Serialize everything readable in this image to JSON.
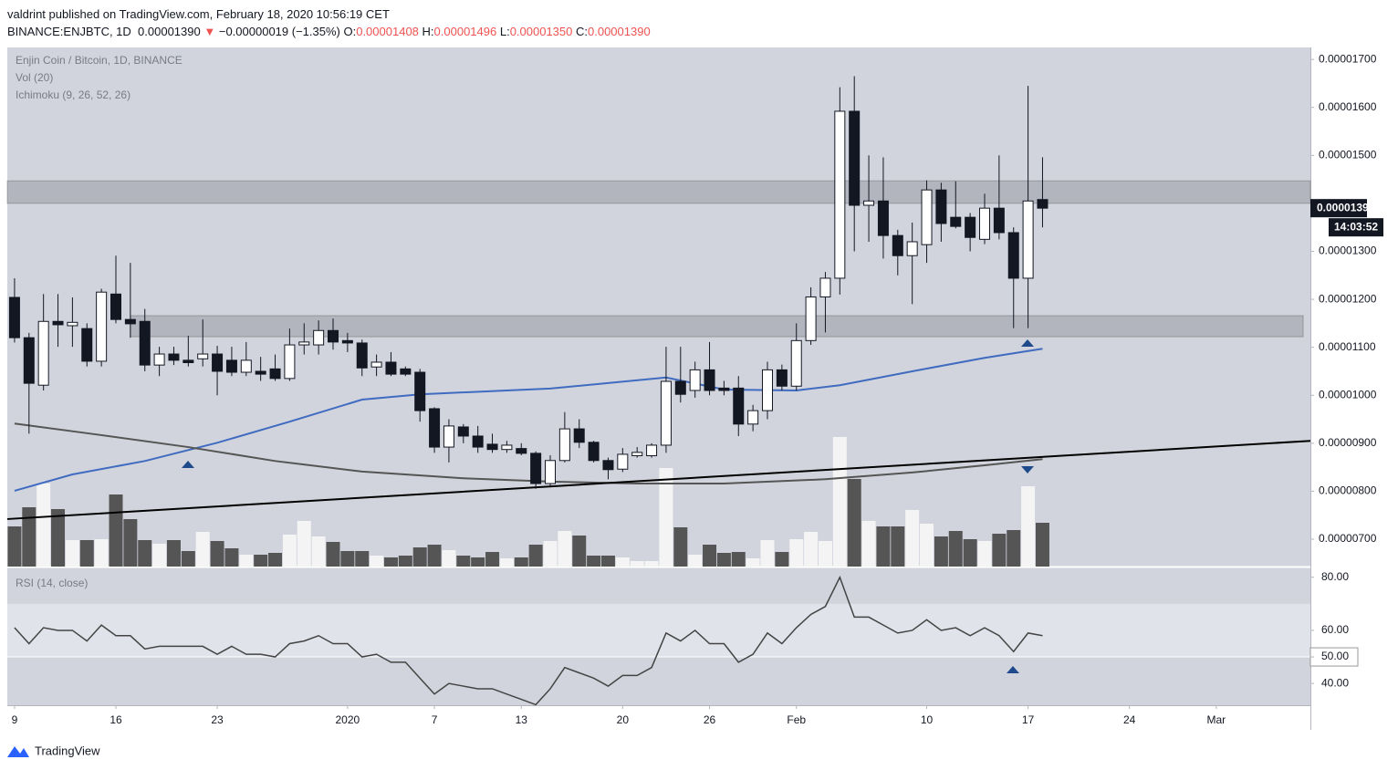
{
  "header": {
    "published": "valdrint published on TradingView.com, February 18, 2020 10:56:19 CET",
    "symbol": "BINANCE:ENJBTC, 1D",
    "last": "0.00001390",
    "arrow": "▼",
    "change": "−0.00000019 (−1.35%)",
    "o_key": "O:",
    "o_val": "0.00001408",
    "h_key": "H:",
    "h_val": "0.00001496",
    "l_key": "L:",
    "l_val": "0.00001350",
    "c_key": "C:",
    "c_val": "0.00001390"
  },
  "chart_data": {
    "type": "candlestick",
    "legend": [
      "Enjin Coin / Bitcoin, 1D, BINANCE",
      "Vol (20)",
      "Ichimoku (9, 26, 52, 26)"
    ],
    "xlim": [
      -0.5,
      89.5
    ],
    "xticks": [
      {
        "value": 0,
        "label": "9"
      },
      {
        "value": 7,
        "label": "16"
      },
      {
        "value": 14,
        "label": "23"
      },
      {
        "value": 23,
        "label": "2020"
      },
      {
        "value": 29,
        "label": "7"
      },
      {
        "value": 35,
        "label": "13"
      },
      {
        "value": 42,
        "label": "20"
      },
      {
        "value": 48,
        "label": "26"
      },
      {
        "value": 54,
        "label": "Feb"
      },
      {
        "value": 63,
        "label": "10"
      },
      {
        "value": 70,
        "label": "17"
      },
      {
        "value": 77,
        "label": "24"
      },
      {
        "value": 83,
        "label": "Mar"
      }
    ],
    "ylim": [
      6.43e-06,
      1.725e-05
    ],
    "yticks": [
      {
        "value": 7e-06,
        "label": "0.00000700"
      },
      {
        "value": 8e-06,
        "label": "0.00000800"
      },
      {
        "value": 9e-06,
        "label": "0.00000900"
      },
      {
        "value": 1e-05,
        "label": "0.00001000"
      },
      {
        "value": 1.1e-05,
        "label": "0.00001100"
      },
      {
        "value": 1.2e-05,
        "label": "0.00001200"
      },
      {
        "value": 1.3e-05,
        "label": "0.00001300"
      },
      {
        "value": 1.5e-05,
        "label": "0.00001500"
      },
      {
        "value": 1.6e-05,
        "label": "0.00001600"
      },
      {
        "value": 1.7e-05,
        "label": "0.00001700"
      }
    ],
    "last_price": {
      "value": 1.39e-05,
      "label": "0.00001390",
      "countdown": "14:03:52"
    },
    "up_color": "#ffffff",
    "down_color": "#131722",
    "open": [
      1.204e-05,
      1.12e-05,
      1.021e-05,
      1.154e-05,
      1.145e-05,
      1.139e-05,
      1.071e-05,
      1.211e-05,
      1.158e-05,
      1.154e-05,
      1.063e-05,
      1.086e-05,
      1.073e-05,
      1.076e-05,
      1.086e-05,
      1.073e-05,
      1.048e-05,
      1.05e-05,
      1.055e-05,
      1.035e-05,
      1.105e-05,
      1.105e-05,
      1.135e-05,
      1.114e-05,
      1.109e-05,
      1.059e-05,
      1.069e-05,
      1.055e-05,
      1.048e-05,
      9.72e-06,
      8.92e-06,
      9.34e-06,
      9.15e-06,
      8.98e-06,
      8.87e-06,
      8.89e-06,
      8.79e-06,
      8.16e-06,
      8.64e-06,
      9.3e-06,
      9.02e-06,
      8.64e-06,
      8.46e-06,
      8.74e-06,
      8.74e-06,
      8.96e-06,
      1.029e-05,
      1.01e-05,
      1.053e-05,
      1.015e-05,
      1.015e-05,
      9.4e-06,
      9.68e-06,
      1.053e-05,
      1.019e-05,
      1.114e-05,
      1.205e-05,
      1.244e-05,
      1.592e-05,
      1.396e-05,
      1.405e-05,
      1.333e-05,
      1.291e-05,
      1.314e-05,
      1.428e-05,
      1.371e-05,
      1.371e-05,
      1.325e-05,
      1.39e-05,
      1.339e-05,
      1.244e-05,
      1.408e-05
    ],
    "high": [
      1.244e-05,
      1.13e-05,
      1.211e-05,
      1.211e-05,
      1.204e-05,
      1.15e-05,
      1.222e-05,
      1.291e-05,
      1.276e-05,
      1.18e-05,
      1.101e-05,
      1.101e-05,
      1.124e-05,
      1.158e-05,
      1.103e-05,
      1.101e-05,
      1.111e-05,
      1.08e-05,
      1.085e-05,
      1.139e-05,
      1.15e-05,
      1.156e-05,
      1.16e-05,
      1.13e-05,
      1.116e-05,
      1.085e-05,
      1.09e-05,
      1.06e-05,
      1.055e-05,
      9.75e-06,
      9.5e-06,
      9.4e-06,
      9.36e-06,
      9.2e-06,
      9.05e-06,
      9e-06,
      8.83e-06,
      8.75e-06,
      9.65e-06,
      9.5e-06,
      9.05e-06,
      8.7e-06,
      8.9e-06,
      8.92e-06,
      9e-06,
      1.101e-05,
      1.101e-05,
      1.07e-05,
      1.111e-05,
      1.03e-05,
      1.04e-05,
      9.8e-06,
      1.07e-05,
      1.064e-05,
      1.15e-05,
      1.225e-05,
      1.257e-05,
      1.642e-05,
      1.665e-05,
      1.5e-05,
      1.496e-05,
      1.345e-05,
      1.36e-05,
      1.448e-05,
      1.443e-05,
      1.446e-05,
      1.38e-05,
      1.42e-05,
      1.5e-05,
      1.35e-05,
      1.645e-05,
      1.496e-05
    ],
    "low": [
      1.11e-05,
      9.2e-06,
      1.01e-05,
      1.101e-05,
      1.101e-05,
      1.06e-05,
      1.06e-05,
      1.15e-05,
      1.12e-05,
      1.05e-05,
      1.04e-05,
      1.063e-05,
      1.06e-05,
      1.06e-05,
      1e-05,
      1.04e-05,
      1.04e-05,
      1.03e-05,
      1.03e-05,
      1.03e-05,
      1.085e-05,
      1.085e-05,
      1.095e-05,
      1.09e-05,
      1.04e-05,
      1.04e-05,
      1.04e-05,
      1.04e-05,
      9.45e-06,
      8.8e-06,
      8.6e-06,
      9e-06,
      8.8e-06,
      8.8e-06,
      8.8e-06,
      8.75e-06,
      8.05e-06,
      8.1e-06,
      8.6e-06,
      8.9e-06,
      8.6e-06,
      8.25e-06,
      8.4e-06,
      8.7e-06,
      8.7e-06,
      8.8e-06,
      9.85e-06,
      9.95e-06,
      1e-05,
      1e-05,
      9.15e-06,
      9.25e-06,
      9.5e-06,
      1.01e-05,
      1.01e-05,
      1.105e-05,
      1.131e-05,
      1.21e-05,
      1.3e-05,
      1.32e-05,
      1.285e-05,
      1.25e-05,
      1.19e-05,
      1.276e-05,
      1.32e-05,
      1.348e-05,
      1.3e-05,
      1.315e-05,
      1.325e-05,
      1.14e-05,
      1.14e-05,
      1.35e-05
    ],
    "close": [
      1.12e-05,
      1.025e-05,
      1.154e-05,
      1.147e-05,
      1.152e-05,
      1.071e-05,
      1.215e-05,
      1.158e-05,
      1.149e-05,
      1.063e-05,
      1.086e-05,
      1.073e-05,
      1.068e-05,
      1.086e-05,
      1.05e-05,
      1.048e-05,
      1.073e-05,
      1.044e-05,
      1.035e-05,
      1.105e-05,
      1.111e-05,
      1.135e-05,
      1.111e-05,
      1.109e-05,
      1.057e-05,
      1.069e-05,
      1.044e-05,
      1.044e-05,
      9.68e-06,
      8.92e-06,
      9.36e-06,
      9.15e-06,
      8.92e-06,
      8.87e-06,
      8.96e-06,
      8.79e-06,
      8.16e-06,
      8.64e-06,
      9.3e-06,
      9.02e-06,
      8.64e-06,
      8.45e-06,
      8.77e-06,
      8.81e-06,
      8.96e-06,
      1.029e-05,
      1.002e-05,
      1.053e-05,
      1.01e-05,
      1.01e-05,
      9.4e-06,
      9.68e-06,
      1.053e-05,
      1.019e-05,
      1.114e-05,
      1.205e-05,
      1.244e-05,
      1.592e-05,
      1.396e-05,
      1.405e-05,
      1.333e-05,
      1.291e-05,
      1.32e-05,
      1.428e-05,
      1.358e-05,
      1.352e-05,
      1.329e-05,
      1.39e-05,
      1.339e-05,
      1.244e-05,
      1.405e-05,
      1.39e-05
    ],
    "volume": [
      44,
      65,
      91,
      63,
      29,
      29,
      30,
      79,
      52,
      29,
      25,
      29,
      17,
      38,
      28,
      20,
      13,
      13,
      15,
      35,
      50,
      33,
      27,
      17,
      17,
      12,
      10,
      12,
      21,
      24,
      18,
      12,
      10,
      16,
      9,
      10,
      24,
      28,
      39,
      34,
      12,
      12,
      10,
      6,
      6,
      108,
      43,
      13,
      24,
      15,
      16,
      9,
      29,
      16,
      30,
      38,
      28,
      142,
      96,
      50,
      44,
      44,
      62,
      47,
      33,
      39,
      30,
      28,
      36,
      40,
      88,
      48
    ],
    "volume_up_color": "#f4f4f4",
    "volume_down_color": "#555555",
    "lines": [
      {
        "color": "#3f6bc0",
        "x": [
          0,
          4,
          9,
          14,
          19,
          24,
          28,
          37,
          45,
          49,
          54,
          57,
          62,
          67,
          71
        ],
        "values": [
          8.01e-06,
          8.35e-06,
          8.63e-06,
          9.01e-06,
          9.45e-06,
          9.91e-06,
          1.002e-05,
          1.014e-05,
          1.037e-05,
          1.012e-05,
          1.01e-05,
          1.021e-05,
          1.05e-05,
          1.078e-05,
          1.097e-05
        ]
      },
      {
        "color": "#555555",
        "x": [
          0,
          5,
          12,
          18,
          24,
          31,
          37,
          43,
          49,
          56,
          62,
          67,
          71
        ],
        "values": [
          9.41e-06,
          9.21e-06,
          8.92e-06,
          8.63e-06,
          8.41e-06,
          8.27e-06,
          8.2e-06,
          8.16e-06,
          8.16e-06,
          8.25e-06,
          8.39e-06,
          8.54e-06,
          8.67e-06
        ]
      }
    ],
    "trendline": {
      "color": "#000000",
      "x": [
        -0.5,
        89.5
      ],
      "values": [
        7.42e-06,
        9.05e-06
      ]
    },
    "zones": [
      {
        "x": [
          -0.5,
          89.5
        ],
        "top": 1.447e-05,
        "bottom": 1.4e-05
      },
      {
        "x": [
          8,
          89
        ],
        "top": 1.166e-05,
        "bottom": 1.122e-05
      }
    ],
    "rsi": {
      "label": "RSI (14, close)",
      "color": "#444444",
      "ylim": [
        31.8,
        83.7
      ],
      "yticks": [
        {
          "value": 40,
          "label": "40.00"
        },
        {
          "value": 50,
          "label": "50.00"
        },
        {
          "value": 60,
          "label": "60.00"
        },
        {
          "value": 80,
          "label": "80.00"
        }
      ],
      "band": [
        50,
        70
      ],
      "values": [
        61,
        55,
        61,
        60,
        60,
        56,
        62,
        58,
        58,
        53,
        54,
        54,
        54,
        54,
        51,
        54,
        51,
        51,
        50,
        55,
        56,
        58,
        55,
        55,
        50,
        51,
        48,
        48,
        42,
        36,
        40,
        39,
        38,
        38,
        36,
        34,
        32,
        38,
        46,
        44,
        42,
        39,
        43,
        43,
        46,
        59,
        56,
        60,
        55,
        55,
        48,
        51,
        59,
        55,
        61,
        66,
        69,
        80,
        65,
        65,
        62,
        59,
        60,
        64,
        60,
        61,
        58,
        61,
        58,
        52,
        59,
        58
      ]
    }
  },
  "footer": "TradingView"
}
